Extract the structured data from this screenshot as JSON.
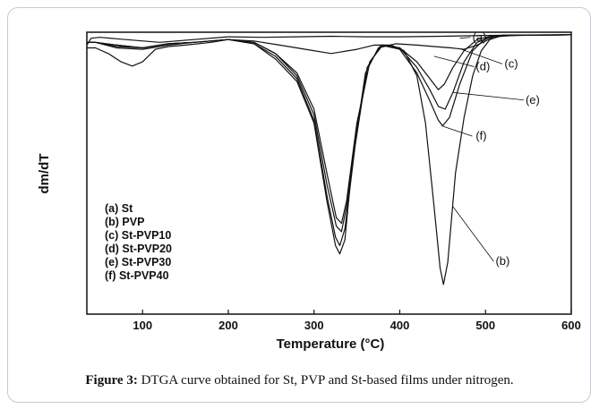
{
  "caption": {
    "label": "Figure 3:",
    "text": "DTGA curve obtained for St, PVP and St-based films under nitrogen."
  },
  "chart_data": {
    "type": "line",
    "title": "",
    "xlabel": "Temperature (°C)",
    "ylabel": "dm/dT",
    "xlim": [
      35,
      600
    ],
    "ylim": [
      0,
      1
    ],
    "xticks": [
      100,
      200,
      300,
      400,
      500,
      600
    ],
    "grid": false,
    "legend_position": "lower-left",
    "legend": [
      "(a) St",
      "(b) PVP",
      "(c) St-PVP10",
      "(d) St-PVP20",
      "(e) St-PVP30",
      "(f) St-PVP40"
    ],
    "series": [
      {
        "name": "(a) St",
        "label": "(a)",
        "points": [
          [
            35,
            0.04
          ],
          [
            40,
            0.015
          ],
          [
            50,
            0.012
          ],
          [
            80,
            0.02
          ],
          [
            120,
            0.03
          ],
          [
            160,
            0.02
          ],
          [
            200,
            0.01
          ],
          [
            240,
            0.012
          ],
          [
            280,
            0.01
          ],
          [
            320,
            0.008
          ],
          [
            360,
            0.01
          ],
          [
            400,
            0.01
          ],
          [
            450,
            0.008
          ],
          [
            500,
            0.005
          ],
          [
            550,
            0.004
          ],
          [
            600,
            0.003
          ]
        ]
      },
      {
        "name": "(b) PVP",
        "label": "(b)",
        "points": [
          [
            35,
            0.05
          ],
          [
            45,
            0.05
          ],
          [
            60,
            0.07
          ],
          [
            75,
            0.1
          ],
          [
            88,
            0.115
          ],
          [
            100,
            0.1
          ],
          [
            115,
            0.055
          ],
          [
            130,
            0.045
          ],
          [
            150,
            0.04
          ],
          [
            180,
            0.03
          ],
          [
            200,
            0.02
          ],
          [
            230,
            0.025
          ],
          [
            260,
            0.04
          ],
          [
            290,
            0.055
          ],
          [
            320,
            0.07
          ],
          [
            350,
            0.055
          ],
          [
            370,
            0.04
          ],
          [
            390,
            0.04
          ],
          [
            405,
            0.06
          ],
          [
            420,
            0.15
          ],
          [
            430,
            0.32
          ],
          [
            440,
            0.62
          ],
          [
            447,
            0.84
          ],
          [
            451,
            0.9
          ],
          [
            456,
            0.82
          ],
          [
            465,
            0.5
          ],
          [
            475,
            0.3
          ],
          [
            485,
            0.15
          ],
          [
            495,
            0.06
          ],
          [
            505,
            0.02
          ],
          [
            520,
            0.005
          ],
          [
            600,
            0.003
          ]
        ]
      },
      {
        "name": "(c) St-PVP10",
        "label": "(c)",
        "points": [
          [
            35,
            0.03
          ],
          [
            45,
            0.03
          ],
          [
            70,
            0.05
          ],
          [
            100,
            0.055
          ],
          [
            130,
            0.04
          ],
          [
            160,
            0.03
          ],
          [
            200,
            0.02
          ],
          [
            230,
            0.035
          ],
          [
            255,
            0.09
          ],
          [
            280,
            0.17
          ],
          [
            300,
            0.32
          ],
          [
            315,
            0.6
          ],
          [
            325,
            0.76
          ],
          [
            330,
            0.79
          ],
          [
            336,
            0.74
          ],
          [
            345,
            0.45
          ],
          [
            360,
            0.14
          ],
          [
            375,
            0.05
          ],
          [
            395,
            0.035
          ],
          [
            420,
            0.04
          ],
          [
            440,
            0.045
          ],
          [
            460,
            0.05
          ],
          [
            475,
            0.055
          ],
          [
            490,
            0.04
          ],
          [
            510,
            0.01
          ],
          [
            540,
            0.004
          ],
          [
            600,
            0.003
          ]
        ]
      },
      {
        "name": "(d) St-PVP20",
        "label": "(d)",
        "points": [
          [
            35,
            0.03
          ],
          [
            45,
            0.03
          ],
          [
            70,
            0.04
          ],
          [
            100,
            0.05
          ],
          [
            130,
            0.035
          ],
          [
            160,
            0.03
          ],
          [
            200,
            0.02
          ],
          [
            230,
            0.03
          ],
          [
            255,
            0.07
          ],
          [
            280,
            0.14
          ],
          [
            300,
            0.27
          ],
          [
            315,
            0.5
          ],
          [
            326,
            0.66
          ],
          [
            332,
            0.68
          ],
          [
            338,
            0.6
          ],
          [
            350,
            0.32
          ],
          [
            365,
            0.1
          ],
          [
            380,
            0.04
          ],
          [
            400,
            0.05
          ],
          [
            420,
            0.1
          ],
          [
            435,
            0.16
          ],
          [
            445,
            0.2
          ],
          [
            452,
            0.18
          ],
          [
            462,
            0.12
          ],
          [
            475,
            0.06
          ],
          [
            490,
            0.02
          ],
          [
            510,
            0.005
          ],
          [
            600,
            0.003
          ]
        ]
      },
      {
        "name": "(e) St-PVP30",
        "label": "(e)",
        "points": [
          [
            35,
            0.03
          ],
          [
            45,
            0.03
          ],
          [
            70,
            0.04
          ],
          [
            100,
            0.05
          ],
          [
            130,
            0.035
          ],
          [
            160,
            0.03
          ],
          [
            200,
            0.02
          ],
          [
            230,
            0.03
          ],
          [
            255,
            0.07
          ],
          [
            280,
            0.15
          ],
          [
            300,
            0.29
          ],
          [
            315,
            0.54
          ],
          [
            326,
            0.69
          ],
          [
            332,
            0.71
          ],
          [
            338,
            0.62
          ],
          [
            350,
            0.33
          ],
          [
            365,
            0.1
          ],
          [
            380,
            0.04
          ],
          [
            400,
            0.05
          ],
          [
            420,
            0.12
          ],
          [
            435,
            0.2
          ],
          [
            445,
            0.26
          ],
          [
            453,
            0.27
          ],
          [
            462,
            0.21
          ],
          [
            475,
            0.1
          ],
          [
            490,
            0.03
          ],
          [
            510,
            0.006
          ],
          [
            600,
            0.003
          ]
        ]
      },
      {
        "name": "(f) St-PVP40",
        "label": "(f)",
        "points": [
          [
            35,
            0.03
          ],
          [
            45,
            0.03
          ],
          [
            70,
            0.045
          ],
          [
            100,
            0.05
          ],
          [
            130,
            0.035
          ],
          [
            160,
            0.03
          ],
          [
            200,
            0.02
          ],
          [
            230,
            0.035
          ],
          [
            255,
            0.08
          ],
          [
            280,
            0.16
          ],
          [
            300,
            0.31
          ],
          [
            315,
            0.58
          ],
          [
            325,
            0.73
          ],
          [
            330,
            0.76
          ],
          [
            336,
            0.7
          ],
          [
            348,
            0.4
          ],
          [
            362,
            0.12
          ],
          [
            378,
            0.04
          ],
          [
            400,
            0.055
          ],
          [
            420,
            0.14
          ],
          [
            435,
            0.24
          ],
          [
            445,
            0.31
          ],
          [
            450,
            0.33
          ],
          [
            458,
            0.3
          ],
          [
            470,
            0.18
          ],
          [
            485,
            0.06
          ],
          [
            500,
            0.015
          ],
          [
            520,
            0.004
          ],
          [
            600,
            0.003
          ]
        ]
      }
    ]
  }
}
